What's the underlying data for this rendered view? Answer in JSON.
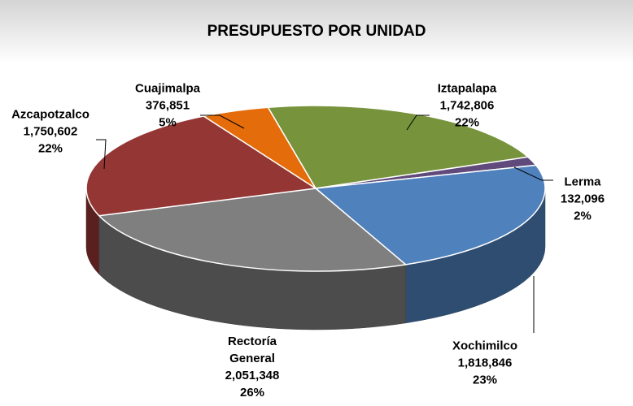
{
  "chart_data": {
    "type": "pie",
    "title": "PRESUPUESTO POR UNIDAD",
    "categories": [
      "Iztapalapa",
      "Lerma",
      "Xochimilco",
      "Rectoría General",
      "Azcapotzalco",
      "Cuajimalpa"
    ],
    "values": [
      1742806,
      132096,
      1818846,
      2051348,
      1750602,
      376851
    ],
    "value_labels": [
      "1,742,806",
      "132,096",
      "1,818,846",
      "2,051,348",
      "1,750,602",
      "376,851"
    ],
    "percent_labels": [
      "22%",
      "2%",
      "23%",
      "26%",
      "22%",
      "5%"
    ],
    "colors": [
      "#77933c",
      "#604a7b",
      "#4f81bd",
      "#7f7f7f",
      "#943634",
      "#e46c0a"
    ]
  }
}
